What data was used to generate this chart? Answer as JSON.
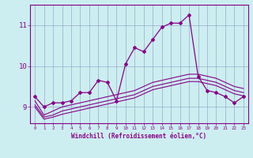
{
  "xlabel": "Windchill (Refroidissement éolien,°C)",
  "bg_color": "#cceef0",
  "line_color": "#880088",
  "grid_color": "#99aacc",
  "x": [
    0,
    1,
    2,
    3,
    4,
    5,
    6,
    7,
    8,
    9,
    10,
    11,
    12,
    13,
    14,
    15,
    16,
    17,
    18,
    19,
    20,
    21,
    22,
    23
  ],
  "y_main": [
    9.25,
    9.0,
    9.1,
    9.1,
    9.15,
    9.35,
    9.35,
    9.65,
    9.6,
    9.15,
    10.05,
    10.45,
    10.35,
    10.65,
    10.95,
    11.05,
    11.05,
    11.25,
    9.75,
    9.4,
    9.35,
    9.25,
    9.1,
    9.25
  ],
  "y_line_a": [
    9.15,
    8.8,
    8.9,
    9.0,
    9.05,
    9.1,
    9.15,
    9.2,
    9.25,
    9.3,
    9.35,
    9.4,
    9.5,
    9.6,
    9.65,
    9.7,
    9.75,
    9.8,
    9.8,
    9.75,
    9.7,
    9.6,
    9.5,
    9.45
  ],
  "y_line_b": [
    9.05,
    8.75,
    8.8,
    8.9,
    8.95,
    9.0,
    9.05,
    9.1,
    9.15,
    9.2,
    9.25,
    9.3,
    9.4,
    9.5,
    9.55,
    9.6,
    9.65,
    9.7,
    9.7,
    9.65,
    9.6,
    9.5,
    9.4,
    9.35
  ],
  "y_line_c": [
    9.0,
    8.7,
    8.75,
    8.82,
    8.87,
    8.92,
    8.97,
    9.02,
    9.07,
    9.12,
    9.17,
    9.22,
    9.32,
    9.42,
    9.47,
    9.52,
    9.57,
    9.62,
    9.62,
    9.57,
    9.52,
    9.42,
    9.32,
    9.27
  ],
  "ylim": [
    8.6,
    11.5
  ],
  "yticks": [
    9,
    10,
    11
  ],
  "xticks": [
    0,
    1,
    2,
    3,
    4,
    5,
    6,
    7,
    8,
    9,
    10,
    11,
    12,
    13,
    14,
    15,
    16,
    17,
    18,
    19,
    20,
    21,
    22,
    23
  ]
}
